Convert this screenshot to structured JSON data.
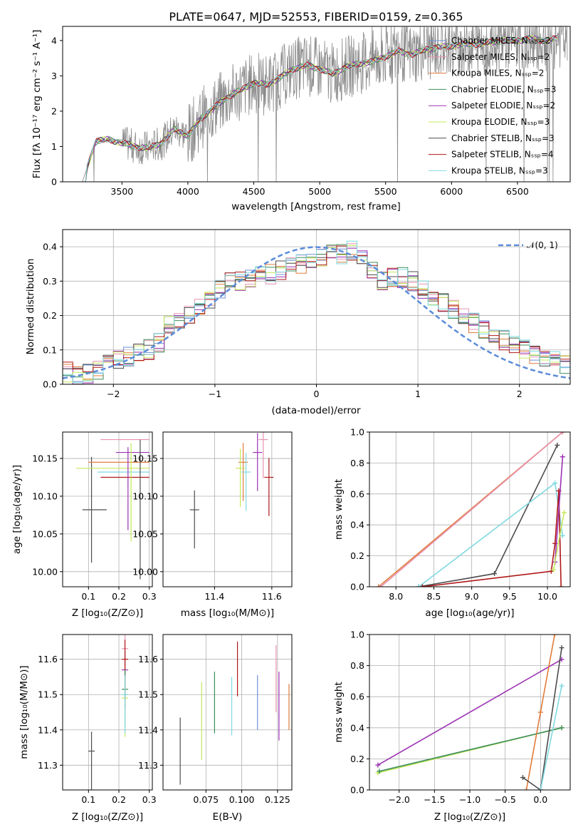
{
  "figure": {
    "title": "PLATE=0647, MJD=52553, FIBERID=0159, z=0.365"
  },
  "chart_data": [
    {
      "id": "spectrum",
      "type": "line",
      "title": "PLATE=0647, MJD=52553, FIBERID=0159, z=0.365",
      "xlabel": "wavelength [Angstrom, rest frame]",
      "ylabel": "Flux [fλ 10⁻¹⁷ erg cm⁻² s⁻¹ A⁻¹]",
      "xlim": [
        3050,
        6900
      ],
      "ylim": [
        0,
        4.4
      ],
      "xticks": [
        "3500",
        "4000",
        "4500",
        "5000",
        "5500",
        "6000",
        "6500"
      ],
      "yticks": [
        "0",
        "1",
        "2",
        "3",
        "4"
      ],
      "grid": false,
      "legend_position": "upper-right",
      "data_x": [
        3200,
        3300,
        3400,
        3500,
        3600,
        3700,
        3800,
        3900,
        4000,
        4100,
        4200,
        4300,
        4400,
        4500,
        4600,
        4700,
        4800,
        4900,
        5000,
        5100,
        5200,
        5300,
        5400,
        5500,
        5600,
        5700,
        5800,
        5900,
        6000,
        6100,
        6200,
        6300,
        6400,
        6500,
        6600,
        6700,
        6800
      ],
      "data_y": [
        0.0,
        1.15,
        1.2,
        1.1,
        1.0,
        0.95,
        1.1,
        1.5,
        1.3,
        1.8,
        2.1,
        2.4,
        2.6,
        2.8,
        2.75,
        2.95,
        3.2,
        3.3,
        3.2,
        3.05,
        3.25,
        3.35,
        3.4,
        3.55,
        3.7,
        3.6,
        3.75,
        3.8,
        3.85,
        3.9,
        3.9,
        3.95,
        4.0,
        4.0,
        4.05,
        4.0,
        4.05
      ],
      "series": [
        {
          "name": "Chabrier MILES, N_SSP=2",
          "color": "#6f8fd8"
        },
        {
          "name": "Salpeter MILES, N_SSP=2",
          "color": "#e892b0"
        },
        {
          "name": "Kroupa MILES, N_SSP=2",
          "color": "#e07b39"
        },
        {
          "name": "Chabrier ELODIE, N_SSP=3",
          "color": "#3e8e5a"
        },
        {
          "name": "Salpeter ELODIE, N_SSP=2",
          "color": "#9c32b3"
        },
        {
          "name": "Kroupa ELODIE, N_SSP=3",
          "color": "#c6e85a"
        },
        {
          "name": "Chabrier STELIB, N_SSP=3",
          "color": "#4d4d4d"
        },
        {
          "name": "Salpeter STELIB, N_SSP=4",
          "color": "#b01818"
        },
        {
          "name": "Kroupa STELIB, N_SSP=3",
          "color": "#7fd9e0"
        }
      ]
    },
    {
      "id": "residual-histogram",
      "type": "line",
      "xlabel": "(data-model)/error",
      "ylabel": "Normed distribution",
      "xlim": [
        -2.5,
        2.5
      ],
      "ylim": [
        0,
        0.45
      ],
      "xticks": [
        "−2",
        "−1",
        "0",
        "1",
        "2"
      ],
      "yticks": [
        "0.0",
        "0.1",
        "0.2",
        "0.3",
        "0.4"
      ],
      "grid": true,
      "legend_position": "upper-right",
      "legend": "𝒩(0, 1)",
      "bin_centers": [
        -2.45,
        -2.35,
        -2.25,
        -2.15,
        -2.05,
        -1.95,
        -1.85,
        -1.75,
        -1.65,
        -1.55,
        -1.45,
        -1.35,
        -1.25,
        -1.15,
        -1.05,
        -0.95,
        -0.85,
        -0.75,
        -0.65,
        -0.55,
        -0.45,
        -0.35,
        -0.25,
        -0.15,
        -0.05,
        0.05,
        0.15,
        0.25,
        0.35,
        0.45,
        0.55,
        0.65,
        0.75,
        0.85,
        0.95,
        1.05,
        1.15,
        1.25,
        1.35,
        1.45,
        1.55,
        1.65,
        1.75,
        1.85,
        1.95,
        2.05,
        2.15,
        2.25,
        2.35,
        2.45
      ],
      "envelope": [
        0.035,
        0.025,
        0.03,
        0.04,
        0.06,
        0.07,
        0.08,
        0.09,
        0.1,
        0.12,
        0.17,
        0.18,
        0.2,
        0.22,
        0.25,
        0.28,
        0.3,
        0.3,
        0.31,
        0.33,
        0.32,
        0.33,
        0.34,
        0.35,
        0.36,
        0.37,
        0.38,
        0.38,
        0.39,
        0.37,
        0.33,
        0.3,
        0.31,
        0.31,
        0.3,
        0.28,
        0.26,
        0.24,
        0.22,
        0.2,
        0.18,
        0.16,
        0.15,
        0.13,
        0.12,
        0.1,
        0.09,
        0.08,
        0.07,
        0.06
      ],
      "gaussian": {
        "name": "N(0,1)",
        "color": "#5b8bd9"
      }
    },
    {
      "id": "age-vs-Z",
      "type": "scatter",
      "xlabel": "Z [log₁₀(Z/Z⊙)]",
      "ylabel": "age  [log₁₀(age/yr)]",
      "xlim": [
        0.015,
        0.31
      ],
      "ylim": [
        9.98,
        10.185
      ],
      "xticks": [
        "0.1",
        "0.2",
        "0.3"
      ],
      "yticks": [
        "10.00",
        "10.05",
        "10.10",
        "10.15"
      ],
      "points": [
        {
          "x": 0.11,
          "y": 10.082,
          "xerr": [
            0.08,
            0.16
          ],
          "yerr": [
            0.07,
            0.07
          ],
          "color": "#4d4d4d"
        },
        {
          "x": 0.22,
          "y": 10.158,
          "xerr": [
            0.19,
            0.3
          ],
          "yerr": [
            0.0,
            0.0
          ],
          "color": "#9c32b3"
        },
        {
          "x": 0.22,
          "y": 10.175,
          "xerr": [
            0.14,
            0.3
          ],
          "yerr": [
            0.0,
            0.0
          ],
          "color": "#e892b0"
        },
        {
          "x": 0.22,
          "y": 10.145,
          "xerr": [
            0.1,
            0.3
          ],
          "yerr": [
            0.0,
            0.0
          ],
          "color": "#e07b39"
        },
        {
          "x": 0.22,
          "y": 10.137,
          "xerr": [
            0.06,
            0.3
          ],
          "yerr": [
            0.0,
            0.0
          ],
          "color": "#c6e85a"
        },
        {
          "x": 0.22,
          "y": 10.132,
          "xerr": [
            0.13,
            0.3
          ],
          "yerr": [
            0.0,
            0.0
          ],
          "color": "#7fd9e0"
        },
        {
          "x": 0.22,
          "y": 10.125,
          "xerr": [
            0.14,
            0.3
          ],
          "yerr": [
            0.0,
            0.0
          ],
          "color": "#b01818"
        },
        {
          "x": 0.24,
          "y": 10.1,
          "xerr": [
            0.0,
            0.0
          ],
          "yerr": [
            10.04,
            10.17
          ],
          "color": "#c6e85a"
        },
        {
          "x": 0.23,
          "y": 10.1,
          "xerr": [
            0.0,
            0.0
          ],
          "yerr": [
            10.055,
            10.165
          ],
          "color": "#9c32b3"
        },
        {
          "x": 0.27,
          "y": 10.08,
          "xerr": [
            0.0,
            0.0
          ],
          "yerr": [
            9.99,
            10.175
          ],
          "color": "#4d4d4d"
        }
      ]
    },
    {
      "id": "age-vs-mass",
      "type": "scatter",
      "xlabel": "mass [log₁₀(M/M⊙)]",
      "ylabel": "",
      "xlim": [
        11.22,
        11.67
      ],
      "ylim": [
        9.98,
        10.185
      ],
      "xticks": [
        "11.4",
        "11.6"
      ],
      "yticks": [
        "10.00",
        "10.05",
        "10.10",
        "10.15"
      ],
      "points": [
        {
          "x": 11.33,
          "y": 10.082,
          "color": "#4d4d4d"
        },
        {
          "x": 11.5,
          "y": 10.145,
          "color": "#e07b39"
        },
        {
          "x": 11.55,
          "y": 10.158,
          "color": "#9c32b3"
        },
        {
          "x": 11.57,
          "y": 10.175,
          "color": "#e892b0"
        },
        {
          "x": 11.59,
          "y": 10.125,
          "color": "#b01818"
        },
        {
          "x": 11.49,
          "y": 10.137,
          "color": "#c6e85a"
        },
        {
          "x": 11.51,
          "y": 10.132,
          "color": "#7fd9e0"
        }
      ]
    },
    {
      "id": "mass-weight-vs-age",
      "type": "line",
      "xlabel": "age  [log₁₀(age/yr)]",
      "ylabel": "mass weight",
      "xlim": [
        7.65,
        10.3
      ],
      "ylim": [
        0,
        1
      ],
      "xticks": [
        "8.0",
        "8.5",
        "9.0",
        "9.5",
        "10.0"
      ],
      "yticks": [
        "0.0",
        "0.2",
        "0.4",
        "0.6",
        "0.8",
        "1.0"
      ],
      "grid": true,
      "series": [
        {
          "name": "Kroupa MILES",
          "color": "#e07b39",
          "x": [
            7.77,
            10.2
          ],
          "y": [
            0.0,
            1.0
          ]
        },
        {
          "name": "Salpeter MILES",
          "color": "#e892b0",
          "x": [
            7.8,
            10.2
          ],
          "y": [
            0.0,
            1.0
          ]
        },
        {
          "name": "Chabrier STELIB",
          "color": "#4d4d4d",
          "x": [
            8.3,
            9.3,
            10.13
          ],
          "y": [
            0.0,
            0.085,
            0.915
          ]
        },
        {
          "name": "Kroupa STELIB",
          "color": "#7fd9e0",
          "x": [
            8.3,
            10.1,
            10.2
          ],
          "y": [
            0.0,
            0.67,
            0.33
          ]
        },
        {
          "name": "Salpeter STELIB",
          "color": "#b01818",
          "x": [
            8.35,
            10.05,
            10.1,
            10.15,
            10.18
          ],
          "y": [
            0.0,
            0.1,
            0.28,
            0.62,
            0.0
          ]
        },
        {
          "name": "Salpeter ELODIE",
          "color": "#9c32b3",
          "x": [
            10.1,
            10.2
          ],
          "y": [
            0.16,
            0.84
          ]
        },
        {
          "name": "Kroupa ELODIE",
          "color": "#c6e85a",
          "x": [
            10.08,
            10.22
          ],
          "y": [
            0.11,
            0.48
          ]
        }
      ]
    },
    {
      "id": "mass-vs-Z",
      "type": "scatter",
      "xlabel": "Z [log₁₀(Z/Z⊙)]",
      "ylabel": "mass [log₁₀(M/M⊙)]",
      "xlim": [
        0.015,
        0.31
      ],
      "ylim": [
        11.23,
        11.67
      ],
      "xticks": [
        "0.1",
        "0.2",
        "0.3"
      ],
      "yticks": [
        "11.3",
        "11.4",
        "11.5",
        "11.6"
      ],
      "points": [
        {
          "x": 0.11,
          "y": 11.34,
          "color": "#4d4d4d"
        },
        {
          "x": 0.22,
          "y": 11.57,
          "color": "#9c32b3"
        },
        {
          "x": 0.22,
          "y": 11.63,
          "color": "#e892b0"
        },
        {
          "x": 0.22,
          "y": 11.6,
          "color": "#b01818"
        },
        {
          "x": 0.22,
          "y": 11.515,
          "color": "#3e8e5a"
        },
        {
          "x": 0.22,
          "y": 11.49,
          "color": "#c6e85a"
        },
        {
          "x": 0.22,
          "y": 11.5,
          "color": "#7fd9e0"
        }
      ]
    },
    {
      "id": "mass-vs-EBV",
      "type": "scatter",
      "xlabel": "E(B-V)",
      "ylabel": "",
      "xlim": [
        0.045,
        0.135
      ],
      "ylim": [
        11.23,
        11.67
      ],
      "xticks": [
        "0.075",
        "0.100",
        "0.125"
      ],
      "yticks": [
        "11.3",
        "11.4",
        "11.5",
        "11.6"
      ],
      "points": [
        {
          "x": 0.057,
          "y": 11.34,
          "yerr": [
            11.245,
            11.435
          ],
          "color": "#4d4d4d"
        },
        {
          "x": 0.072,
          "y": 11.42,
          "yerr": [
            11.315,
            11.535
          ],
          "color": "#c6e85a"
        },
        {
          "x": 0.081,
          "y": 11.48,
          "yerr": [
            11.39,
            11.565
          ],
          "color": "#3e8e5a"
        },
        {
          "x": 0.093,
          "y": 11.47,
          "yerr": [
            11.385,
            11.55
          ],
          "color": "#7fd9e0"
        },
        {
          "x": 0.097,
          "y": 11.57,
          "yerr": [
            11.495,
            11.65
          ],
          "color": "#b01818"
        },
        {
          "x": 0.111,
          "y": 11.47,
          "yerr": [
            11.4,
            11.555
          ],
          "color": "#6f8fd8"
        },
        {
          "x": 0.124,
          "y": 11.55,
          "yerr": [
            11.45,
            11.64
          ],
          "color": "#e892b0"
        },
        {
          "x": 0.126,
          "y": 11.47,
          "yerr": [
            11.37,
            11.565
          ],
          "color": "#9c32b3"
        },
        {
          "x": 0.133,
          "y": 11.47,
          "yerr": [
            11.4,
            11.53
          ],
          "color": "#e07b39"
        }
      ]
    },
    {
      "id": "mass-weight-vs-Z",
      "type": "line",
      "xlabel": "Z [log₁₀(Z/Z⊙)]",
      "ylabel": "mass weight",
      "xlim": [
        -2.42,
        0.42
      ],
      "ylim": [
        0,
        1
      ],
      "xticks": [
        "−2.0",
        "−1.5",
        "−1.0",
        "−0.5",
        "0.0"
      ],
      "yticks": [
        "0.0",
        "0.2",
        "0.4",
        "0.6",
        "0.8",
        "1.0"
      ],
      "grid": true,
      "series": [
        {
          "name": "Salpeter ELODIE",
          "color": "#9c32b3",
          "x": [
            -2.3,
            0.3
          ],
          "y": [
            0.16,
            0.84
          ]
        },
        {
          "name": "Kroupa ELODIE",
          "color": "#c6e85a",
          "x": [
            -2.3,
            0.3
          ],
          "y": [
            0.11,
            0.4
          ]
        },
        {
          "name": "Chabrier ELODIE",
          "color": "#3e8e5a",
          "x": [
            -2.28,
            0.3
          ],
          "y": [
            0.12,
            0.4
          ]
        },
        {
          "name": "Kroupa MILES",
          "color": "#e07b39",
          "x": [
            -0.2,
            0.0,
            0.2
          ],
          "y": [
            0.0,
            0.5,
            1.0
          ]
        },
        {
          "name": "Chabrier STELIB",
          "color": "#4d4d4d",
          "x": [
            -0.25,
            0.0,
            0.3
          ],
          "y": [
            0.08,
            0.0,
            0.915
          ]
        },
        {
          "name": "Kroupa STELIB",
          "color": "#7fd9e0",
          "x": [
            0.0,
            0.3
          ],
          "y": [
            0.0,
            0.67
          ]
        }
      ]
    }
  ]
}
